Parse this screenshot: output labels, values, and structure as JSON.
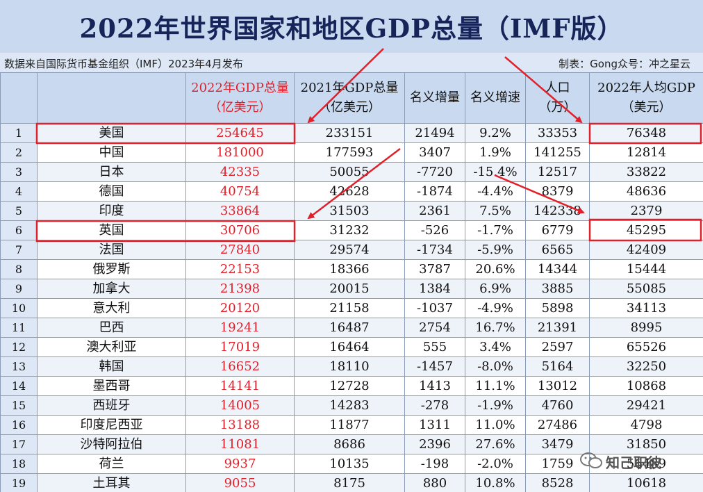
{
  "title": "2022年世界国家和地区GDP总量（IMF版）",
  "source_note": "数据来自国际货币基金组织（IMF）2023年4月发布",
  "author_note": "制表：Gong众号：冲之星云",
  "columns": [
    {
      "line1": "",
      "line2": ""
    },
    {
      "line1": "",
      "line2": ""
    },
    {
      "line1": "2022年GDP总量",
      "line2": "（亿美元）"
    },
    {
      "line1": "2021年GDP总量",
      "line2": "（亿美元）"
    },
    {
      "line1": "名义增量",
      "line2": ""
    },
    {
      "line1": "名义增速",
      "line2": ""
    },
    {
      "line1": "人口",
      "line2": "（万）"
    },
    {
      "line1": "2022年人均GDP",
      "line2": "（美元）"
    }
  ],
  "rows": [
    {
      "rank": "1",
      "country": "美国",
      "gdp2022": "254645",
      "gdp2021": "233151",
      "increase": "21494",
      "growth": "9.2%",
      "population": "33353",
      "per_capita": "76348"
    },
    {
      "rank": "2",
      "country": "中国",
      "gdp2022": "181000",
      "gdp2021": "177593",
      "increase": "3407",
      "growth": "1.9%",
      "population": "141255",
      "per_capita": "12814"
    },
    {
      "rank": "3",
      "country": "日本",
      "gdp2022": "42335",
      "gdp2021": "50055",
      "increase": "-7720",
      "growth": "-15.4%",
      "population": "12517",
      "per_capita": "33822"
    },
    {
      "rank": "4",
      "country": "德国",
      "gdp2022": "40754",
      "gdp2021": "42628",
      "increase": "-1874",
      "growth": "-4.4%",
      "population": "8379",
      "per_capita": "48636"
    },
    {
      "rank": "5",
      "country": "印度",
      "gdp2022": "33864",
      "gdp2021": "31503",
      "increase": "2361",
      "growth": "7.5%",
      "population": "142338",
      "per_capita": "2379"
    },
    {
      "rank": "6",
      "country": "英国",
      "gdp2022": "30706",
      "gdp2021": "31232",
      "increase": "-526",
      "growth": "-1.7%",
      "population": "6779",
      "per_capita": "45295"
    },
    {
      "rank": "7",
      "country": "法国",
      "gdp2022": "27840",
      "gdp2021": "29574",
      "increase": "-1734",
      "growth": "-5.9%",
      "population": "6565",
      "per_capita": "42409"
    },
    {
      "rank": "8",
      "country": "俄罗斯",
      "gdp2022": "22153",
      "gdp2021": "18366",
      "increase": "3787",
      "growth": "20.6%",
      "population": "14344",
      "per_capita": "15444"
    },
    {
      "rank": "9",
      "country": "加拿大",
      "gdp2022": "21398",
      "gdp2021": "20015",
      "increase": "1384",
      "growth": "6.9%",
      "population": "3885",
      "per_capita": "55085"
    },
    {
      "rank": "10",
      "country": "意大利",
      "gdp2022": "20120",
      "gdp2021": "21158",
      "increase": "-1037",
      "growth": "-4.9%",
      "population": "5898",
      "per_capita": "34113"
    },
    {
      "rank": "11",
      "country": "巴西",
      "gdp2022": "19241",
      "gdp2021": "16487",
      "increase": "2754",
      "growth": "16.7%",
      "population": "21391",
      "per_capita": "8995"
    },
    {
      "rank": "12",
      "country": "澳大利亚",
      "gdp2022": "17019",
      "gdp2021": "16464",
      "increase": "555",
      "growth": "3.4%",
      "population": "2597",
      "per_capita": "65526"
    },
    {
      "rank": "13",
      "country": "韩国",
      "gdp2022": "16652",
      "gdp2021": "18110",
      "increase": "-1457",
      "growth": "-8.0%",
      "population": "5164",
      "per_capita": "32250"
    },
    {
      "rank": "14",
      "country": "墨西哥",
      "gdp2022": "14141",
      "gdp2021": "12728",
      "increase": "1413",
      "growth": "11.1%",
      "population": "13012",
      "per_capita": "10868"
    },
    {
      "rank": "15",
      "country": "西班牙",
      "gdp2022": "14005",
      "gdp2021": "14283",
      "increase": "-278",
      "growth": "-1.9%",
      "population": "4760",
      "per_capita": "29421"
    },
    {
      "rank": "16",
      "country": "印度尼西亚",
      "gdp2022": "13188",
      "gdp2021": "11877",
      "increase": "1311",
      "growth": "11.0%",
      "population": "27486",
      "per_capita": "4798"
    },
    {
      "rank": "17",
      "country": "沙特阿拉伯",
      "gdp2022": "11081",
      "gdp2021": "8686",
      "increase": "2396",
      "growth": "27.6%",
      "population": "3479",
      "per_capita": "31850"
    },
    {
      "rank": "18",
      "country": "荷兰",
      "gdp2022": "9937",
      "gdp2021": "10135",
      "increase": "-198",
      "growth": "-2.0%",
      "population": "1759",
      "per_capita": "56489"
    },
    {
      "rank": "19",
      "country": "土耳其",
      "gdp2022": "9055",
      "gdp2021": "8175",
      "increase": "880",
      "growth": "10.8%",
      "population": "8528",
      "per_capita": "10618"
    }
  ],
  "watermark": "知己职彼",
  "colors": {
    "title_text": "#16245a",
    "header_bg": "#c9daf0",
    "highlight_red": "#e0202a",
    "row_alt": "#eef3fa"
  },
  "icons": {
    "watermark_icon": "wechat-icon"
  }
}
